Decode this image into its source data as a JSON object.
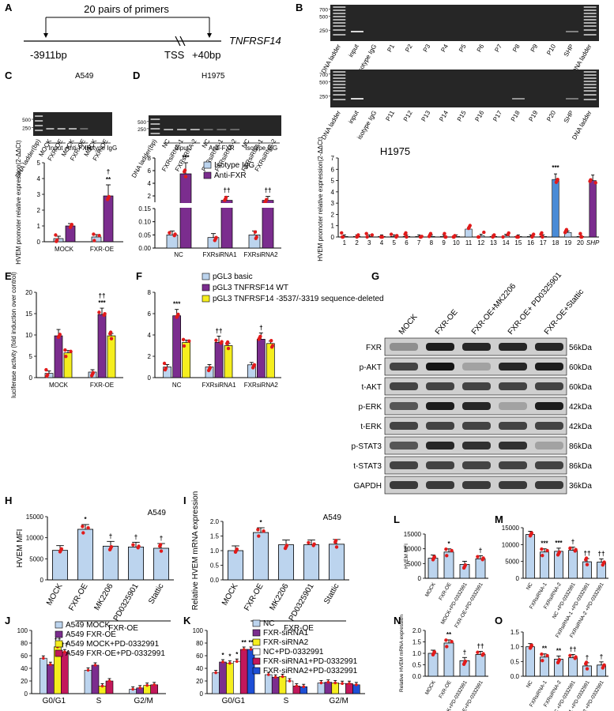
{
  "panels": {
    "A": {
      "label": "A",
      "primers": "20 pairs of primers",
      "left": "-3911bp",
      "tss": "TSS",
      "right": "+40bp",
      "gene": "TNFRSF14"
    },
    "B": {
      "label": "B",
      "lanes_top": [
        "DNA ladder",
        "input",
        "isotype IgG",
        "P1",
        "P2",
        "P3",
        "P4",
        "P5",
        "P6",
        "P7",
        "P8",
        "P9",
        "P10",
        "SHP",
        "DNA ladder"
      ],
      "lanes_bottom": [
        "DNA ladder",
        "input",
        "isotype IgG",
        "P11",
        "P12",
        "P13",
        "P14",
        "P15",
        "P16",
        "P17",
        "P18",
        "P19",
        "P20",
        "SHP",
        "DNA ladder"
      ],
      "ladder": [
        "700",
        "500",
        "250"
      ]
    },
    "B2": {
      "title": "H1975",
      "ylabel": "HVEM promoter relative expression(2-ΔΔCt)",
      "xlabels": [
        "1",
        "2",
        "3",
        "4",
        "5",
        "6",
        "7",
        "8",
        "9",
        "10",
        "11",
        "12",
        "13",
        "14",
        "15",
        "16",
        "17",
        "18",
        "19",
        "20",
        "SHP"
      ],
      "sig": "***"
    },
    "C": {
      "label": "C",
      "cell": "A549",
      "lanes": [
        "DNA ladder(bp)",
        "MOCK",
        "FXR-OE",
        "MOCK",
        "FXR-OE",
        "MOCK",
        "FXR-OE"
      ],
      "groups": [
        "Input",
        "Anti-FXR",
        "Isotype IgG"
      ],
      "ladder": [
        "500",
        "250"
      ],
      "ylabel": "HVEM promoter relative expression(2-ΔΔCt)",
      "xlabels": [
        "MOCK",
        "FXR-OE"
      ],
      "sig1": "†",
      "sig2": "**"
    },
    "D": {
      "label": "D",
      "cell": "H1975",
      "lanes": [
        "DNA ladder(bp)",
        "NC",
        "FXRsiRNA-1",
        "FXRsiRNA-2",
        "NC",
        "FXRsiRNA-1",
        "FXRsiRNA-2",
        "NC",
        "FXRsiRNA-1",
        "FXRsiRNA-2"
      ],
      "groups": [
        "Input",
        "Anti-FXR",
        "Isotype IgG"
      ],
      "ladder": [
        "500",
        "250"
      ],
      "legend": [
        "Isotype IgG",
        "Anti-FXR"
      ],
      "xlabels": [
        "NC",
        "FXRsiRNA1",
        "FXRsiRNA2"
      ],
      "sig_nc": "***",
      "sig_si": "††"
    },
    "E": {
      "label": "E",
      "ylabel": "luciferase activity (fold induction over control)",
      "xlabels": [
        "MOCK",
        "FXR-OE"
      ],
      "sig1": "††",
      "sig2": "***"
    },
    "F": {
      "label": "F",
      "legend": [
        "pGL3 basic",
        "pGL3 TNFRSF14 WT",
        "pGL3 TNFRSF14 -3537/-3319 sequence-deleted"
      ],
      "xlabels": [
        "NC",
        "FXRsiRNA1",
        "FXRsiRNA2"
      ],
      "sig_nc": "***",
      "sig1": "††",
      "sig2": "†"
    },
    "G": {
      "label": "G",
      "cols": [
        "MOCK",
        "FXR-OE",
        "FXR-OE+MK2206",
        "FXR-OE+ PD0325901",
        "FXR-OE+Stattic"
      ],
      "rows": [
        {
          "name": "FXR",
          "kda": "56kDa"
        },
        {
          "name": "p-AKT",
          "kda": "60kDa"
        },
        {
          "name": "t-AKT",
          "kda": "60kDa"
        },
        {
          "name": "p-ERK",
          "kda": "42kDa"
        },
        {
          "name": "t-ERK",
          "kda": "42kDa"
        },
        {
          "name": "p-STAT3",
          "kda": "86kDa"
        },
        {
          "name": "t-STAT3",
          "kda": "86kDa"
        },
        {
          "name": "GAPDH",
          "kda": "36kDa"
        }
      ]
    },
    "H": {
      "label": "H",
      "cell": "A549",
      "ylabel": "HVEM MFI",
      "xlabels": [
        "MOCK",
        "FXR-OE",
        "MK2206",
        "PD0325901",
        "Stattic"
      ],
      "group": "FXR-OE"
    },
    "I": {
      "label": "I",
      "cell": "A549",
      "ylabel": "Relative HVEM mRNA expression",
      "xlabels": [
        "MOCK",
        "FXR-OE",
        "MK2206",
        "PD0325901",
        "Stattic"
      ],
      "group": "FXR-OE"
    },
    "J": {
      "label": "J",
      "legend": [
        "A549 MOCK",
        "A549 FXR-OE",
        "A549 MOCK+PD-0332991",
        "A549 FXR-OE+PD-0332991"
      ],
      "xlabels": [
        "G0/G1",
        "S",
        "G2/M"
      ]
    },
    "K": {
      "label": "K",
      "legend": [
        "NC",
        "FXR-siRNA1",
        "FXR-siRNA2",
        "NC+PD-0332991",
        "FXR-siRNA1+PD-0332991",
        "FXR-siRNA2+PD-0332991"
      ],
      "xlabels": [
        "G0/G1",
        "S",
        "G2/M"
      ]
    },
    "L": {
      "label": "L",
      "ylabel": "HVEM MFI",
      "xlabels": [
        "MOCK",
        "FXR-OE",
        "MOCK+PD-0332991",
        "FXR-OE+PD-0332991"
      ]
    },
    "M": {
      "label": "M",
      "xlabels": [
        "NC",
        "FXRsiRNA-1",
        "FXRsiRNA-2",
        "NC +PD-0332991",
        "FXRsiRNA-1 +PD-0332991",
        "FXRsiRNA-2 +PD-0332991"
      ]
    },
    "N": {
      "label": "N",
      "ylabel": "Relative HVEM mRNA expression",
      "xlabels": [
        "MOCK",
        "FXR-OE",
        "MOCK+PD-0332991",
        "FXR-OE+PD-0332991"
      ]
    },
    "O": {
      "label": "O",
      "xlabels": [
        "NC",
        "FXRsiRNA-1",
        "FXRsiRNA-2",
        "NC +PD-0332991",
        "FXRsiRNA-1 +PD-0332991",
        "FXRsiRNA-2 +PD-0332991"
      ]
    }
  },
  "colors": {
    "bar": "#bcd4ee",
    "purple": "#7b2d8e",
    "yellow": "#f5ee1e",
    "magenta": "#c2185b",
    "blue": "#1e4fd6",
    "dots": "#e11b1b",
    "gel": "#262626",
    "blot": "#1f1f1f"
  },
  "chart_data": [
    {
      "id": "B2",
      "type": "bar",
      "title": "H1975",
      "ylabel": "HVEM promoter relative expression(2-ΔΔCt)",
      "categories": [
        "1",
        "2",
        "3",
        "4",
        "5",
        "6",
        "7",
        "8",
        "9",
        "10",
        "11",
        "12",
        "13",
        "14",
        "15",
        "16",
        "17",
        "18",
        "19",
        "20",
        "SHP"
      ],
      "values": [
        0.05,
        0.05,
        0.05,
        0.05,
        0.05,
        0.05,
        0.05,
        0.05,
        0.05,
        0.05,
        0.7,
        0.1,
        0.05,
        0.1,
        0.05,
        0.05,
        0.05,
        5.1,
        0.4,
        0.05,
        5.0
      ],
      "ylim": [
        0,
        7
      ]
    },
    {
      "id": "C",
      "type": "bar",
      "ylabel": "HVEM promoter relative expression(2-ΔΔCt)",
      "categories": [
        "MOCK",
        "FXR-OE"
      ],
      "series": [
        {
          "name": "Isotype IgG",
          "values": [
            0.2,
            0.3
          ]
        },
        {
          "name": "Anti-FXR",
          "values": [
            1.0,
            2.9
          ]
        }
      ],
      "ylim": [
        0,
        5
      ]
    },
    {
      "id": "D",
      "type": "bar",
      "categories": [
        "NC",
        "FXRsiRNA1",
        "FXRsiRNA2"
      ],
      "series": [
        {
          "name": "Isotype IgG",
          "values": [
            0.05,
            0.04,
            0.05
          ]
        },
        {
          "name": "Anti-FXR",
          "values": [
            5.5,
            1.3,
            1.3
          ]
        }
      ]
    },
    {
      "id": "E",
      "type": "bar",
      "ylabel": "luciferase activity (fold induction over control)",
      "categories": [
        "MOCK",
        "FXR-OE"
      ],
      "series": [
        {
          "name": "pGL3 basic",
          "values": [
            1.0,
            1.3
          ]
        },
        {
          "name": "pGL3 TNFRSF14 WT",
          "values": [
            9.8,
            14.8
          ]
        },
        {
          "name": "pGL3 TNFRSF14 -3537/-3319 sequence-deleted",
          "values": [
            5.8,
            9.8
          ]
        }
      ],
      "ylim": [
        0,
        20
      ]
    },
    {
      "id": "F",
      "type": "bar",
      "categories": [
        "NC",
        "FXRsiRNA1",
        "FXRsiRNA2"
      ],
      "series": [
        {
          "name": "pGL3 basic",
          "values": [
            1.0,
            1.0,
            1.2
          ]
        },
        {
          "name": "pGL3 TNFRSF14 WT",
          "values": [
            5.8,
            3.3,
            3.6
          ]
        },
        {
          "name": "pGL3 TNFRSF14 -3537/-3319 sequence-deleted",
          "values": [
            3.3,
            3.0,
            3.2
          ]
        }
      ],
      "ylim": [
        0,
        8
      ]
    },
    {
      "id": "H",
      "type": "bar",
      "ylabel": "HVEM MFI",
      "categories": [
        "MOCK",
        "FXR-OE",
        "MK2206",
        "PD0325901",
        "Stattic"
      ],
      "values": [
        7000,
        12000,
        8000,
        7800,
        7500
      ],
      "ylim": [
        0,
        15000
      ]
    },
    {
      "id": "I",
      "type": "bar",
      "ylabel": "Relative HVEM mRNA expression",
      "categories": [
        "MOCK",
        "FXR-OE",
        "MK2206",
        "PD0325901",
        "Stattic"
      ],
      "values": [
        1.0,
        1.62,
        1.2,
        1.2,
        1.22
      ],
      "ylim": [
        0,
        2.0
      ]
    },
    {
      "id": "J",
      "type": "bar",
      "categories": [
        "G0/G1",
        "S",
        "G2/M"
      ],
      "series": [
        {
          "name": "A549 MOCK",
          "values": [
            56,
            37,
            7
          ]
        },
        {
          "name": "A549 FXR-OE",
          "values": [
            46,
            45,
            9
          ]
        },
        {
          "name": "A549 MOCK+PD-0332991",
          "values": [
            74,
            12,
            13
          ]
        },
        {
          "name": "A549 FXR-OE+PD-0332991",
          "values": [
            66,
            20,
            14
          ]
        }
      ],
      "ylim": [
        0,
        100
      ]
    },
    {
      "id": "K",
      "type": "bar",
      "categories": [
        "G0/G1",
        "S",
        "G2/M"
      ],
      "series": [
        {
          "name": "NC",
          "values": [
            33,
            30,
            17
          ]
        },
        {
          "name": "FXR-siRNA1",
          "values": [
            50,
            26,
            18
          ]
        },
        {
          "name": "FXR-siRNA2",
          "values": [
            48,
            27,
            17
          ]
        },
        {
          "name": "NC+PD-0332991",
          "values": [
            51,
            20,
            16
          ]
        },
        {
          "name": "FXR-siRNA1+PD-0332991",
          "values": [
            70,
            12,
            16
          ]
        },
        {
          "name": "FXR-siRNA2+PD-0332991",
          "values": [
            70,
            11,
            14
          ]
        }
      ],
      "ylim": [
        0,
        100
      ]
    },
    {
      "id": "L",
      "type": "bar",
      "ylabel": "HVEM MFI",
      "categories": [
        "MOCK",
        "FXR-OE",
        "MOCK+PD-0332991",
        "FXR-OE+PD-0332991"
      ],
      "values": [
        6800,
        8900,
        4700,
        6600
      ],
      "ylim": [
        0,
        15000
      ]
    },
    {
      "id": "M",
      "type": "bar",
      "categories": [
        "NC",
        "FXRsiRNA-1",
        "FXRsiRNA-2",
        "NC +PD-0332991",
        "FXRsiRNA-1 +PD-0332991",
        "FXRsiRNA-2 +PD-0332991"
      ],
      "values": [
        13000,
        7800,
        8000,
        8300,
        4900,
        4800
      ],
      "ylim": [
        0,
        15000
      ]
    },
    {
      "id": "N",
      "type": "bar",
      "ylabel": "Relative HVEM mRNA expression",
      "categories": [
        "MOCK",
        "FXR-OE",
        "MOCK+PD-0332991",
        "FXR-OE+PD-0332991"
      ],
      "values": [
        1.0,
        1.45,
        0.68,
        0.95
      ],
      "ylim": [
        0,
        2.0
      ]
    },
    {
      "id": "O",
      "type": "bar",
      "categories": [
        "NC",
        "FXRsiRNA-1",
        "FXRsiRNA-2",
        "NC +PD-0332991",
        "FXRsiRNA-1 +PD-0332991",
        "FXRsiRNA-2 +PD-0332991"
      ],
      "values": [
        1.0,
        0.65,
        0.58,
        0.63,
        0.35,
        0.38
      ],
      "ylim": [
        0,
        1.5
      ]
    }
  ]
}
